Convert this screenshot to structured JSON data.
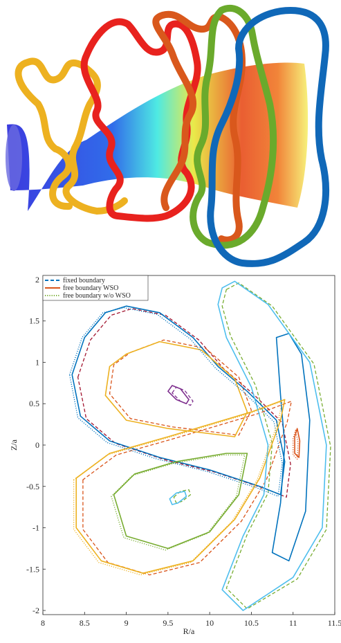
{
  "chart_data": {
    "type": "line",
    "xlabel": "R/a",
    "ylabel": "Z/a",
    "xlim": [
      8,
      11.5
    ],
    "ylim": [
      -2.05,
      2.05
    ],
    "xticks": [
      8,
      8.5,
      9,
      9.5,
      10,
      10.5,
      11,
      11.5
    ],
    "yticks": [
      -2,
      -1.5,
      -1,
      -0.5,
      0,
      0.5,
      1,
      1.5,
      2
    ],
    "legend": "upper left",
    "series": [
      {
        "name": "fixed boundary",
        "style": "dashed",
        "color": "#0072bd",
        "curves": [
          {
            "color": "#a2142f",
            "x": [
              8.42,
              8.57,
              8.82,
              9.07,
              9.47,
              9.87,
              10.17,
              10.52,
              10.87,
              10.97,
              10.92,
              10.67,
              10.07,
              9.47,
              8.87,
              8.52
            ],
            "y": [
              0.82,
              1.27,
              1.57,
              1.65,
              1.57,
              1.27,
              0.92,
              0.62,
              0.27,
              -0.23,
              -0.63,
              -0.53,
              -0.33,
              -0.18,
              0.02,
              0.32
            ]
          },
          {
            "color": "#77ac30",
            "x": [
              10.2,
              10.35,
              10.75,
              11.25,
              11.45,
              11.4,
              11.05,
              10.45,
              10.2,
              10.45,
              10.7,
              10.75,
              10.55,
              10.25,
              10.15
            ],
            "y": [
              1.88,
              1.96,
              1.68,
              0.98,
              -0.02,
              -1.02,
              -1.62,
              -1.98,
              -1.73,
              -1.08,
              -0.58,
              0.02,
              0.72,
              1.32,
              1.68
            ]
          },
          {
            "color": "#d95319",
            "x": [
              9.05,
              9.45,
              9.95,
              10.35,
              10.5,
              10.35,
              9.55,
              9.05,
              8.8,
              8.85
            ],
            "y": [
              1.12,
              1.27,
              1.17,
              0.82,
              0.42,
              0.12,
              0.22,
              0.32,
              0.62,
              0.97
            ]
          },
          {
            "color": "#d95319",
            "x": [
              8.48,
              8.48,
              8.78,
              9.28,
              9.88,
              10.38,
              10.68,
              10.93,
              10.98,
              10.58,
              9.58,
              8.88
            ],
            "y": [
              -0.42,
              -1.02,
              -1.42,
              -1.57,
              -1.42,
              -0.92,
              -0.42,
              0.28,
              0.53,
              0.38,
              0.08,
              -0.12
            ]
          },
          {
            "color": "#7e2f8e",
            "x": [
              9.55,
              9.6,
              9.7,
              9.8,
              9.77,
              9.65
            ],
            "y": [
              0.63,
              0.7,
              0.66,
              0.53,
              0.48,
              0.53
            ]
          },
          {
            "color": "#77ac30",
            "x": [
              9.57,
              9.65,
              9.75,
              9.77,
              9.67,
              9.6
            ],
            "y": [
              -0.63,
              -0.56,
              -0.54,
              -0.6,
              -0.68,
              -0.7
            ]
          }
        ]
      },
      {
        "name": "free boundary WSO",
        "style": "solid",
        "color": "#d95319",
        "curves": [
          {
            "color": "#0072bd",
            "x": [
              8.35,
              8.5,
              8.75,
              9.0,
              9.4,
              9.8,
              10.1,
              10.45,
              10.8,
              10.9,
              10.85,
              10.6,
              10.0,
              9.4,
              8.8,
              8.45
            ],
            "y": [
              0.85,
              1.3,
              1.6,
              1.68,
              1.6,
              1.3,
              0.95,
              0.65,
              0.3,
              -0.2,
              -0.6,
              -0.5,
              -0.3,
              -0.15,
              0.05,
              0.35
            ]
          },
          {
            "color": "#0072bd",
            "x": [
              10.8,
              10.85,
              10.9,
              10.85,
              10.75,
              10.95,
              11.15,
              11.2,
              11.1,
              10.95
            ],
            "y": [
              1.3,
              0.6,
              0.0,
              -0.7,
              -1.3,
              -1.4,
              -0.8,
              0.3,
              1.1,
              1.35
            ]
          },
          {
            "color": "#edb120",
            "x": [
              9.0,
              9.4,
              9.9,
              10.3,
              10.45,
              10.3,
              9.5,
              9.0,
              8.75,
              8.8
            ],
            "y": [
              1.1,
              1.25,
              1.15,
              0.8,
              0.4,
              0.1,
              0.2,
              0.3,
              0.6,
              0.95
            ]
          },
          {
            "color": "#edb120",
            "x": [
              8.4,
              8.4,
              8.7,
              9.2,
              9.8,
              10.3,
              10.6,
              10.85,
              10.9,
              10.5,
              9.5,
              8.8
            ],
            "y": [
              -0.4,
              -1.0,
              -1.4,
              -1.55,
              -1.4,
              -0.9,
              -0.4,
              0.3,
              0.55,
              0.4,
              0.1,
              -0.1
            ]
          },
          {
            "color": "#77ac30",
            "x": [
              8.85,
              9.0,
              9.5,
              10.0,
              10.35,
              10.45,
              10.2,
              9.6,
              9.1
            ],
            "y": [
              -0.6,
              -1.1,
              -1.25,
              -1.05,
              -0.6,
              -0.1,
              -0.1,
              -0.2,
              -0.35
            ]
          },
          {
            "color": "#4dbeee",
            "x": [
              10.15,
              10.3,
              10.7,
              11.2,
              11.4,
              11.35,
              11.0,
              10.4,
              10.15,
              10.4,
              10.65,
              10.7,
              10.5,
              10.2,
              10.1
            ],
            "y": [
              1.9,
              1.98,
              1.7,
              1.0,
              0.0,
              -1.0,
              -1.6,
              -2.0,
              -1.75,
              -1.1,
              -0.6,
              0.0,
              0.7,
              1.3,
              1.7
            ]
          },
          {
            "color": "#7e2f8e",
            "x": [
              9.5,
              9.55,
              9.65,
              9.75,
              9.72,
              9.6
            ],
            "y": [
              0.65,
              0.72,
              0.68,
              0.55,
              0.5,
              0.55
            ]
          },
          {
            "color": "#4dbeee",
            "x": [
              9.52,
              9.6,
              9.7,
              9.72,
              9.62,
              9.55
            ],
            "y": [
              -0.65,
              -0.58,
              -0.56,
              -0.62,
              -0.7,
              -0.72
            ]
          },
          {
            "color": "#d95319",
            "x": [
              11.05,
              11.08,
              11.07,
              11.02,
              11.02
            ],
            "y": [
              0.2,
              0.05,
              -0.15,
              -0.1,
              0.1
            ]
          }
        ]
      },
      {
        "name": "free boundary w/o WSO",
        "style": "dotted",
        "color": "#77ac30",
        "curves": [
          {
            "color": "#0072bd",
            "x": [
              8.32,
              8.47,
              8.72,
              8.97,
              9.37,
              9.77,
              10.07,
              10.42,
              10.77,
              10.87,
              10.82,
              10.57,
              9.97,
              9.37,
              8.77,
              8.42
            ],
            "y": [
              0.85,
              1.3,
              1.6,
              1.66,
              1.58,
              1.28,
              0.93,
              0.63,
              0.28,
              -0.22,
              -0.62,
              -0.52,
              -0.32,
              -0.17,
              0.03,
              0.33
            ]
          },
          {
            "color": "#edb120",
            "x": [
              8.37,
              8.37,
              8.67,
              9.17,
              9.77,
              10.27,
              10.57,
              10.82,
              10.87,
              10.47,
              9.47,
              8.77
            ],
            "y": [
              -0.42,
              -1.02,
              -1.42,
              -1.57,
              -1.42,
              -0.92,
              -0.42,
              0.28,
              0.53,
              0.38,
              0.08,
              -0.12
            ]
          },
          {
            "color": "#77ac30",
            "x": [
              8.82,
              8.97,
              9.47,
              9.97,
              10.32,
              10.42,
              10.17,
              9.57,
              9.07
            ],
            "y": [
              -0.62,
              -1.12,
              -1.27,
              -1.07,
              -0.62,
              -0.12,
              -0.12,
              -0.22,
              -0.37
            ]
          },
          {
            "color": "#d95319",
            "x": [
              11.03,
              11.06,
              11.05,
              11.0,
              11.0
            ],
            "y": [
              0.18,
              0.03,
              -0.17,
              -0.12,
              0.08
            ]
          }
        ]
      }
    ]
  }
}
